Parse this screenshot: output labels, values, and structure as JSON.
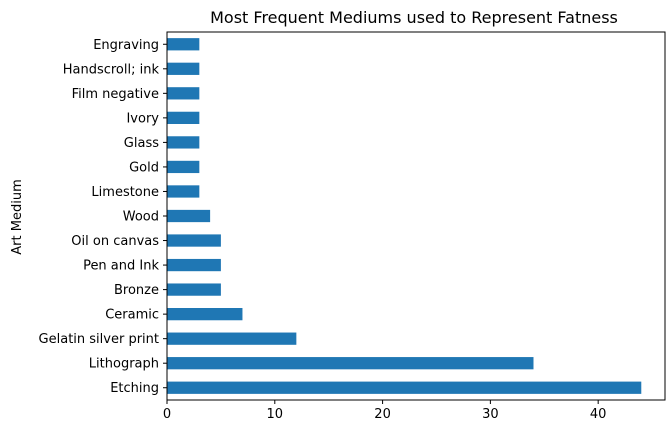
{
  "chart_data": {
    "type": "bar",
    "orientation": "horizontal",
    "title": "Most Frequent Mediums used to Represent Fatness",
    "xlabel": "",
    "ylabel": "Art Medium",
    "xlim": [
      0,
      46.2
    ],
    "xticks": [
      "0",
      "10",
      "20",
      "30",
      "40"
    ],
    "categories": [
      "Engraving",
      "Handscroll; ink",
      "Film negative",
      "Ivory",
      "Glass",
      "Gold",
      "Limestone",
      "Wood",
      "Oil on canvas",
      "Pen and Ink",
      "Bronze",
      "Ceramic",
      "Gelatin silver print",
      "Lithograph",
      "Etching"
    ],
    "values": [
      3,
      3,
      3,
      3,
      3,
      3,
      3,
      4,
      5,
      5,
      5,
      7,
      12,
      34,
      44
    ],
    "bar_color": "#1f77b4",
    "grid": false,
    "legend": "none"
  }
}
